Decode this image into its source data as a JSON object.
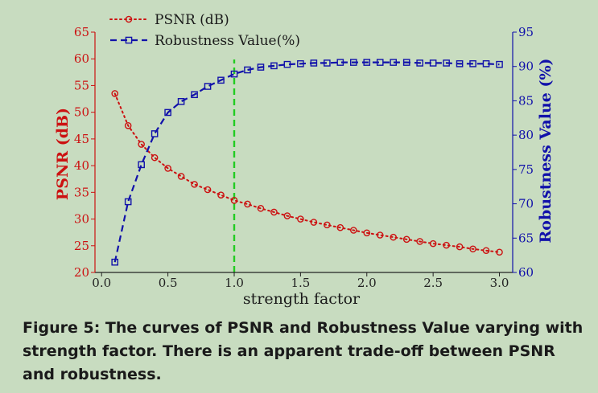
{
  "caption": "Figure 5: The curves of PSNR and Robustness Value varying with strength factor. There is an apparent trade-off between PSNR and robustness.",
  "colors": {
    "psnr": "#cc1111",
    "robustness": "#1111aa",
    "marker_line": "#22cc22",
    "background": "#c8dcc0"
  },
  "chart_data": {
    "type": "line",
    "xlabel": "strength factor",
    "ylabel_left": "PSNR (dB)",
    "ylabel_right": "Robustness Value (%)",
    "xlim": [
      -0.05,
      3.1
    ],
    "ylim_left": [
      20,
      65
    ],
    "ylim_right": [
      60,
      95
    ],
    "xticks": [
      "0.0",
      "0.5",
      "1.0",
      "1.5",
      "2.0",
      "2.5",
      "3.0"
    ],
    "yticks_left": [
      "20",
      "25",
      "30",
      "35",
      "40",
      "45",
      "50",
      "55",
      "60",
      "65"
    ],
    "yticks_right": [
      "60",
      "65",
      "70",
      "75",
      "80",
      "85",
      "90",
      "95"
    ],
    "vline_x": 1.0,
    "legend_position": "top-left",
    "x": [
      0.1,
      0.2,
      0.3,
      0.4,
      0.5,
      0.6,
      0.7,
      0.8,
      0.9,
      1.0,
      1.1,
      1.2,
      1.3,
      1.4,
      1.5,
      1.6,
      1.7,
      1.8,
      1.9,
      2.0,
      2.1,
      2.2,
      2.3,
      2.4,
      2.5,
      2.6,
      2.7,
      2.8,
      2.9,
      3.0
    ],
    "series": [
      {
        "name": "PSNR (dB)",
        "axis": "left",
        "marker": "circle",
        "linestyle": "dotted",
        "values": [
          53.5,
          47.5,
          44.0,
          41.5,
          39.5,
          38.0,
          36.5,
          35.5,
          34.5,
          33.5,
          32.8,
          32.0,
          31.3,
          30.6,
          30.0,
          29.4,
          28.9,
          28.4,
          27.9,
          27.4,
          27.0,
          26.6,
          26.2,
          25.8,
          25.4,
          25.1,
          24.8,
          24.4,
          24.1,
          23.8
        ]
      },
      {
        "name": "Robustness Value(%)",
        "axis": "right",
        "marker": "square",
        "linestyle": "dashed",
        "values": [
          61.5,
          70.3,
          75.7,
          80.2,
          83.3,
          84.9,
          85.9,
          87.1,
          88.0,
          88.9,
          89.5,
          89.9,
          90.1,
          90.3,
          90.4,
          90.5,
          90.5,
          90.6,
          90.6,
          90.6,
          90.6,
          90.6,
          90.6,
          90.5,
          90.5,
          90.5,
          90.4,
          90.4,
          90.4,
          90.3
        ]
      }
    ]
  }
}
